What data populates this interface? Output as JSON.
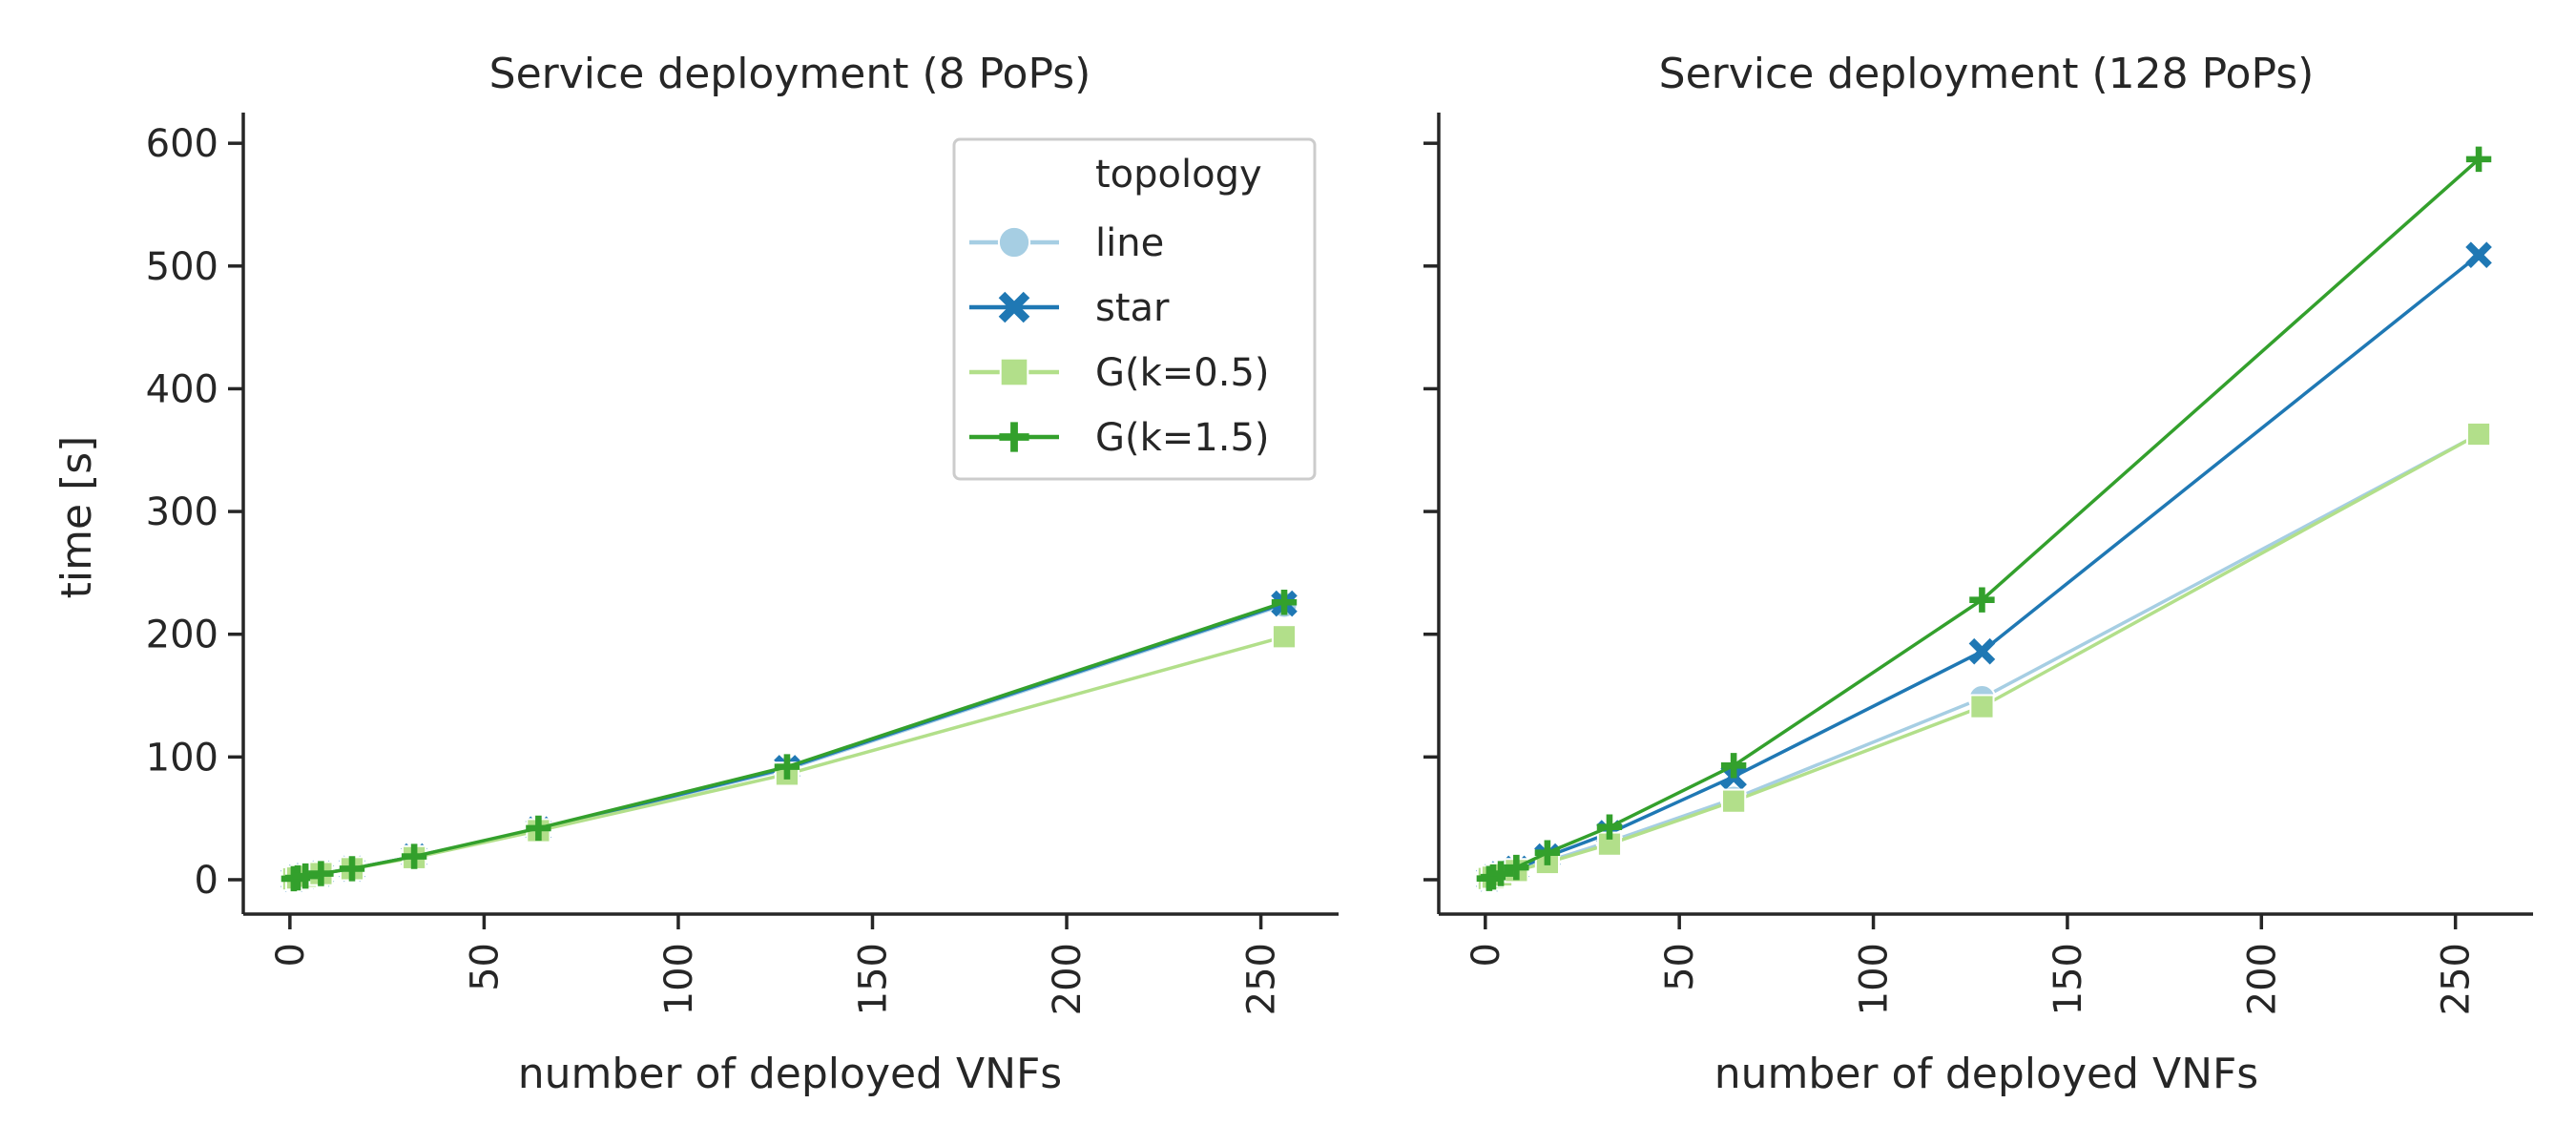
{
  "chart_data": [
    {
      "type": "line",
      "title": "Service deployment (8 PoPs)",
      "xlabel": "number of deployed VNFs",
      "ylabel": "time [s]",
      "xlim": [
        -12,
        270
      ],
      "ylim": [
        -28,
        625
      ],
      "xticks": [
        0,
        50,
        100,
        150,
        200,
        250
      ],
      "yticks": [
        0,
        100,
        200,
        300,
        400,
        500,
        600
      ],
      "x": [
        1,
        2,
        4,
        8,
        16,
        32,
        64,
        128,
        256
      ],
      "series": [
        {
          "name": "line",
          "values": [
            0.8,
            1.5,
            3,
            5,
            9,
            19,
            41,
            90,
            224
          ]
        },
        {
          "name": "star",
          "values": [
            0.8,
            1.5,
            3,
            5,
            9,
            19,
            41,
            91,
            225
          ]
        },
        {
          "name": "G(k=0.5)",
          "values": [
            0.7,
            1.4,
            2.8,
            5,
            9,
            18,
            40,
            86,
            198
          ]
        },
        {
          "name": "G(k=1.5)",
          "values": [
            0.8,
            1.5,
            3,
            5,
            9,
            19,
            42,
            92,
            226
          ]
        }
      ],
      "legend": {
        "title": "topology",
        "placement": "upper right"
      }
    },
    {
      "type": "line",
      "title": "Service deployment (128 PoPs)",
      "xlabel": "number of deployed VNFs",
      "ylabel": "",
      "xlim": [
        -12,
        270
      ],
      "ylim": [
        -28,
        625
      ],
      "xticks": [
        0,
        50,
        100,
        150,
        200,
        250
      ],
      "yticks": [
        0,
        100,
        200,
        300,
        400,
        500,
        600
      ],
      "x": [
        1,
        2,
        4,
        8,
        16,
        32,
        64,
        128,
        256
      ],
      "series": [
        {
          "name": "line",
          "values": [
            1,
            2,
            4,
            8,
            15,
            31,
            66,
            148,
            363
          ]
        },
        {
          "name": "star",
          "values": [
            1,
            2,
            4.5,
            9,
            19,
            38,
            84,
            186,
            509
          ]
        },
        {
          "name": "G(k=0.5)",
          "values": [
            1,
            2,
            4,
            7.5,
            14,
            29,
            64,
            141,
            363
          ]
        },
        {
          "name": "G(k=1.5)",
          "values": [
            1,
            2.2,
            5,
            10,
            22,
            43,
            93,
            228,
            587
          ]
        }
      ]
    }
  ],
  "style": {
    "colors": {
      "line": "#a6cee3",
      "star": "#1f78b4",
      "G(k=0.5)": "#b2df8a",
      "G(k=1.5)": "#33a02c"
    },
    "markers": {
      "line": "circle",
      "star": "x-mark",
      "G(k=0.5)": "square",
      "G(k=1.5)": "plus"
    }
  }
}
